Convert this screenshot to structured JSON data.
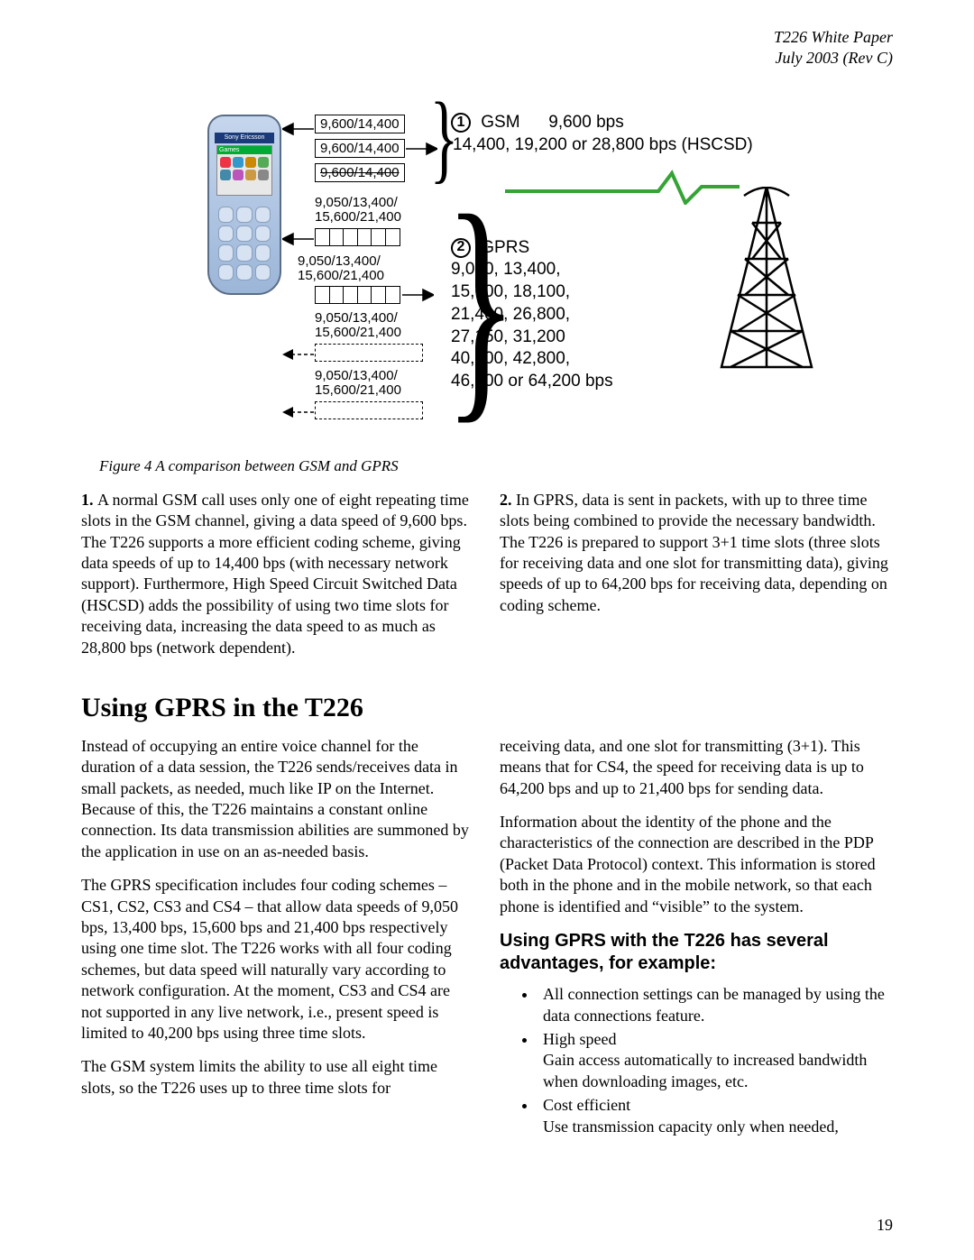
{
  "header": {
    "line1": "T226 White Paper",
    "line2": "July 2003 (Rev C)"
  },
  "diagram": {
    "phone_banner": "Sony Ericsson",
    "phone_screen_bar": "Games",
    "gsm_slots": [
      "9,600/14,400",
      "9,600/14,400",
      "9,600/14,400"
    ],
    "gprs_slot_label": "9,050/13,400/\n15,600/21,400",
    "gsm": {
      "title": "GSM",
      "speed": "9,600 bps",
      "hscsd": "14,400, 19,200 or 28,800 bps (HSCSD)"
    },
    "gprs": {
      "title": "GPRS",
      "l1": "9,050, 13,400,",
      "l2": "15,600, 18,100,",
      "l3": "21,400, 26,800,",
      "l4": "27,150, 31,200",
      "l5": "40,200, 42,800,",
      "l6": "46,800 or 64,200 bps"
    },
    "tower_signal_color": "#35a335",
    "icon_colors": [
      "#e34",
      "#39c",
      "#c80",
      "#5a5",
      "#48a",
      "#b5b",
      "#c94",
      "#888"
    ]
  },
  "caption": "Figure 4 A comparison between GSM and GPRS",
  "para1_lead": "1.",
  "para1": "A normal GSM call uses only one of eight repeating time slots in the GSM channel, giving a data speed of 9,600 bps. The T226 supports a more efficient coding scheme, giving data speeds of up to 14,400 bps (with necessary network support). Furthermore, High Speed Circuit Switched Data (HSCSD) adds the possibility of using two time slots for receiving data, increasing the data speed to as much as 28,800 bps (network dependent).",
  "para2_lead": "2.",
  "para2": "In GPRS, data is sent in packets, with up to three time slots being combined to provide the necessary bandwidth. The T226 is prepared to support 3+1 time slots (three slots for receiving data and one slot for transmitting data), giving speeds of up to 64,200 bps for receiving data, depending on coding scheme.",
  "section_title": "Using GPRS in the T226",
  "body": {
    "l1": "Instead of occupying an entire voice channel for the duration of a data session, the T226 sends/receives data in small packets, as needed, much like IP on the Internet. Because of this, the T226 maintains a constant online connection. Its data transmission abilities are summoned by the application in use on an as-needed basis.",
    "l2": "The GPRS specification includes four coding schemes – CS1, CS2, CS3 and CS4 – that allow data speeds of 9,050 bps, 13,400 bps, 15,600 bps and 21,400 bps respectively using one time slot. The T226 works with all four coding schemes, but data speed will naturally vary according to network configuration. At the moment, CS3 and CS4 are not supported in any live network, i.e., present speed is limited to 40,200 bps using three time slots.",
    "l3": "The GSM system limits the ability to use all eight time slots, so the T226 uses up to three time slots for",
    "r1": "receiving data, and one slot for transmitting (3+1). This means that for CS4, the speed for receiving data is up to 64,200 bps and up to 21,400 bps for sending data.",
    "r2": "Information about the identity of the phone and the characteristics of the connection are described in the PDP (Packet Data Protocol) context. This information is stored both in the phone and in the mobile network, so that each phone is identified and “visible” to the system."
  },
  "advantages_title": "Using GPRS with the T226 has several advantages, for example:",
  "advantages": {
    "a1": "All connection settings can be managed by using the data connections feature.",
    "a2": "High speed",
    "a2b": "Gain access automatically to increased bandwidth when downloading images, etc.",
    "a3": "Cost efficient",
    "a3b": "Use transmission capacity only when needed,"
  },
  "page_number": "19"
}
